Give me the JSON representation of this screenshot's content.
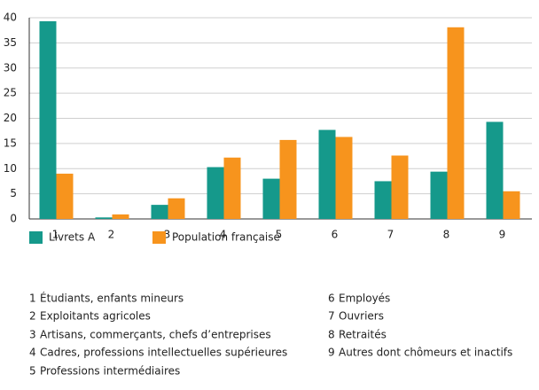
{
  "chart_data": {
    "type": "bar",
    "categories": [
      "1",
      "2",
      "3",
      "4",
      "5",
      "6",
      "7",
      "8",
      "9"
    ],
    "series": [
      {
        "name": "Livrets A",
        "color": "#15998b",
        "values": [
          39.3,
          0.3,
          2.8,
          10.3,
          8.0,
          17.7,
          7.5,
          9.4,
          19.3
        ]
      },
      {
        "name": "Population française",
        "color": "#f7941d",
        "values": [
          9.0,
          0.9,
          4.1,
          12.2,
          15.7,
          16.3,
          12.6,
          38.1,
          5.5
        ]
      }
    ],
    "ylim": [
      0,
      40
    ],
    "yticks": [
      0,
      5,
      10,
      15,
      20,
      25,
      30,
      35,
      40
    ],
    "grid": true,
    "notes": [
      "Étudiants, enfants mineurs",
      "Exploitants agricoles",
      "Artisans, commerçants, chefs d’entreprises",
      "Cadres, professions intellectuelles supérieures",
      "Professions intermédiaires",
      "Employés",
      "Ouvriers",
      "Retraités",
      "Autres dont chômeurs et inactifs"
    ]
  }
}
